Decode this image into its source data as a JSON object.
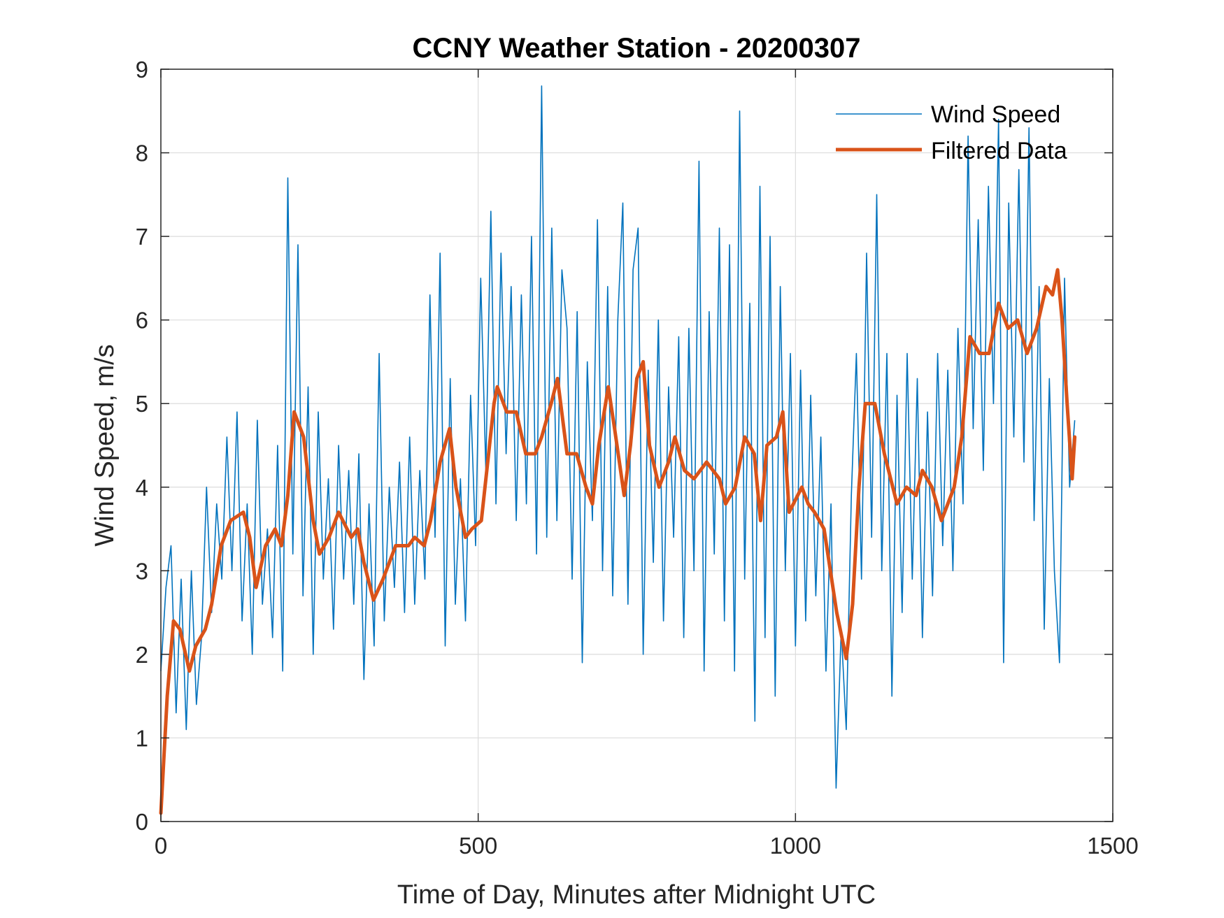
{
  "chart_data": {
    "type": "line",
    "title": "CCNY Weather Station - 20200307",
    "xlabel": "Time of Day, Minutes after Midnight UTC",
    "ylabel": "Wind Speed, m/s",
    "xlim": [
      0,
      1500
    ],
    "ylim": [
      0,
      9
    ],
    "xticks": [
      0,
      500,
      1000,
      1500
    ],
    "xtick_labels": [
      "0",
      "500",
      "1000",
      "1500"
    ],
    "yticks": [
      0,
      1,
      2,
      3,
      4,
      5,
      6,
      7,
      8,
      9
    ],
    "ytick_labels": [
      "0",
      "1",
      "2",
      "3",
      "4",
      "5",
      "6",
      "7",
      "8",
      "9"
    ],
    "grid": true,
    "legend_placement": "top-right",
    "series": [
      {
        "name": "Wind Speed",
        "color": "#0072BD",
        "x_start": 0,
        "x_step": 8,
        "values": [
          1.8,
          2.8,
          3.3,
          1.3,
          2.9,
          1.1,
          3.0,
          1.4,
          2.2,
          4.0,
          2.5,
          3.8,
          2.9,
          4.6,
          3.0,
          4.9,
          2.4,
          3.8,
          2.0,
          4.8,
          2.6,
          3.5,
          2.2,
          4.5,
          1.8,
          7.7,
          3.2,
          6.9,
          2.7,
          5.2,
          2.0,
          4.9,
          2.9,
          4.1,
          2.3,
          4.5,
          2.9,
          4.2,
          2.6,
          4.4,
          1.7,
          3.8,
          2.1,
          5.6,
          2.4,
          4.0,
          2.8,
          4.3,
          2.5,
          4.6,
          2.6,
          4.2,
          2.9,
          6.3,
          3.4,
          6.8,
          2.1,
          5.3,
          2.6,
          4.1,
          2.4,
          5.1,
          3.3,
          6.5,
          4.2,
          7.3,
          3.8,
          6.8,
          4.4,
          6.4,
          3.6,
          6.3,
          3.8,
          7.0,
          3.2,
          8.8,
          3.4,
          7.1,
          3.6,
          6.6,
          5.9,
          2.9,
          6.1,
          1.9,
          5.5,
          3.6,
          7.2,
          3.0,
          6.4,
          2.7,
          6.0,
          7.4,
          2.6,
          6.6,
          7.1,
          2.0,
          5.4,
          3.1,
          6.0,
          2.4,
          5.2,
          3.4,
          5.8,
          2.2,
          5.9,
          3.0,
          7.9,
          1.8,
          6.1,
          3.2,
          7.1,
          2.4,
          6.9,
          1.8,
          8.5,
          2.9,
          6.2,
          1.2,
          7.6,
          2.2,
          7.0,
          1.5,
          6.4,
          3.0,
          5.6,
          2.1,
          5.4,
          2.4,
          5.1,
          2.7,
          4.6,
          1.8,
          3.8,
          0.4,
          2.3,
          1.1,
          3.9,
          5.6,
          2.9,
          6.8,
          3.4,
          7.5,
          3.0,
          5.6,
          1.5,
          5.1,
          2.5,
          5.6,
          2.9,
          5.3,
          2.2,
          4.9,
          2.7,
          5.6,
          3.3,
          5.4,
          3.0,
          5.9,
          3.8,
          8.2,
          4.7,
          7.2,
          4.2,
          7.6,
          5.0,
          8.4,
          1.9,
          7.4,
          4.6,
          7.8,
          4.3,
          8.3,
          3.6,
          6.4,
          2.3,
          5.3,
          3.0,
          1.9,
          6.5,
          4.0,
          4.8
        ]
      },
      {
        "name": "Filtered Data",
        "color": "#D95319",
        "points": [
          [
            0,
            0.1
          ],
          [
            10,
            1.5
          ],
          [
            20,
            2.4
          ],
          [
            30,
            2.3
          ],
          [
            45,
            1.8
          ],
          [
            55,
            2.1
          ],
          [
            70,
            2.3
          ],
          [
            80,
            2.6
          ],
          [
            95,
            3.3
          ],
          [
            110,
            3.6
          ],
          [
            130,
            3.7
          ],
          [
            140,
            3.4
          ],
          [
            150,
            2.8
          ],
          [
            165,
            3.3
          ],
          [
            180,
            3.5
          ],
          [
            190,
            3.3
          ],
          [
            200,
            3.9
          ],
          [
            210,
            4.9
          ],
          [
            225,
            4.6
          ],
          [
            240,
            3.6
          ],
          [
            250,
            3.2
          ],
          [
            265,
            3.4
          ],
          [
            280,
            3.7
          ],
          [
            300,
            3.4
          ],
          [
            310,
            3.5
          ],
          [
            320,
            3.1
          ],
          [
            335,
            2.65
          ],
          [
            350,
            2.9
          ],
          [
            370,
            3.3
          ],
          [
            390,
            3.3
          ],
          [
            400,
            3.4
          ],
          [
            415,
            3.3
          ],
          [
            425,
            3.6
          ],
          [
            440,
            4.3
          ],
          [
            455,
            4.7
          ],
          [
            465,
            4.0
          ],
          [
            480,
            3.4
          ],
          [
            490,
            3.5
          ],
          [
            505,
            3.6
          ],
          [
            515,
            4.3
          ],
          [
            525,
            5.0
          ],
          [
            530,
            5.2
          ],
          [
            545,
            4.9
          ],
          [
            560,
            4.9
          ],
          [
            575,
            4.4
          ],
          [
            590,
            4.4
          ],
          [
            600,
            4.6
          ],
          [
            615,
            5.0
          ],
          [
            625,
            5.3
          ],
          [
            640,
            4.4
          ],
          [
            655,
            4.4
          ],
          [
            670,
            4.0
          ],
          [
            680,
            3.8
          ],
          [
            690,
            4.5
          ],
          [
            705,
            5.2
          ],
          [
            715,
            4.7
          ],
          [
            730,
            3.9
          ],
          [
            740,
            4.5
          ],
          [
            750,
            5.3
          ],
          [
            760,
            5.5
          ],
          [
            770,
            4.5
          ],
          [
            785,
            4.0
          ],
          [
            800,
            4.3
          ],
          [
            810,
            4.6
          ],
          [
            825,
            4.2
          ],
          [
            840,
            4.1
          ],
          [
            860,
            4.3
          ],
          [
            880,
            4.1
          ],
          [
            890,
            3.8
          ],
          [
            905,
            4.0
          ],
          [
            920,
            4.6
          ],
          [
            935,
            4.4
          ],
          [
            945,
            3.6
          ],
          [
            955,
            4.5
          ],
          [
            970,
            4.6
          ],
          [
            980,
            4.9
          ],
          [
            990,
            3.7
          ],
          [
            1010,
            4.0
          ],
          [
            1020,
            3.8
          ],
          [
            1030,
            3.7
          ],
          [
            1045,
            3.5
          ],
          [
            1055,
            3.0
          ],
          [
            1065,
            2.5
          ],
          [
            1080,
            1.95
          ],
          [
            1090,
            2.6
          ],
          [
            1100,
            4.0
          ],
          [
            1110,
            5.0
          ],
          [
            1125,
            5.0
          ],
          [
            1140,
            4.4
          ],
          [
            1150,
            4.1
          ],
          [
            1160,
            3.8
          ],
          [
            1175,
            4.0
          ],
          [
            1190,
            3.9
          ],
          [
            1200,
            4.2
          ],
          [
            1215,
            4.0
          ],
          [
            1230,
            3.6
          ],
          [
            1250,
            4.0
          ],
          [
            1262,
            4.6
          ],
          [
            1275,
            5.8
          ],
          [
            1290,
            5.6
          ],
          [
            1305,
            5.6
          ],
          [
            1320,
            6.2
          ],
          [
            1335,
            5.9
          ],
          [
            1350,
            6.0
          ],
          [
            1365,
            5.6
          ],
          [
            1380,
            5.9
          ],
          [
            1395,
            6.4
          ],
          [
            1405,
            6.3
          ],
          [
            1413,
            6.6
          ],
          [
            1420,
            6.0
          ],
          [
            1428,
            5.0
          ],
          [
            1436,
            4.1
          ],
          [
            1440,
            4.6
          ]
        ]
      }
    ]
  }
}
